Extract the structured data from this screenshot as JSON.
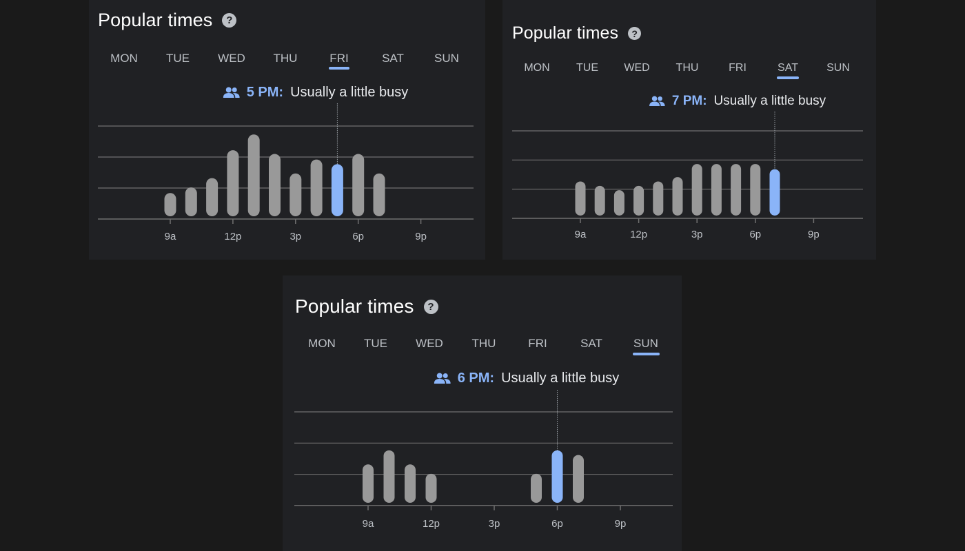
{
  "colors": {
    "background": "#1a1a1a",
    "panel": "#202124",
    "bar": "#999999",
    "bar_selected": "#8ab4f8",
    "gridline": "#707070",
    "text_muted": "#bdc1c6"
  },
  "panels": [
    {
      "title": "Popular times",
      "help_icon": "help-circle-icon",
      "days": [
        "MON",
        "TUE",
        "WED",
        "THU",
        "FRI",
        "SAT",
        "SUN"
      ],
      "selected_day": "FRI",
      "status": {
        "icon": "people-icon",
        "time": "5 PM:",
        "text": "Usually a little busy"
      }
    },
    {
      "title": "Popular times",
      "help_icon": "help-circle-icon",
      "days": [
        "MON",
        "TUE",
        "WED",
        "THU",
        "FRI",
        "SAT",
        "SUN"
      ],
      "selected_day": "SAT",
      "status": {
        "icon": "people-icon",
        "time": "7 PM:",
        "text": "Usually a little busy"
      }
    },
    {
      "title": "Popular times",
      "help_icon": "help-circle-icon",
      "days": [
        "MON",
        "TUE",
        "WED",
        "THU",
        "FRI",
        "SAT",
        "SUN"
      ],
      "selected_day": "SUN",
      "status": {
        "icon": "people-icon",
        "time": "6 PM:",
        "text": "Usually a little busy"
      }
    }
  ],
  "chart_data": [
    {
      "type": "bar",
      "title": "Popular times (FRI)",
      "x_ticks": [
        "9a",
        "12p",
        "3p",
        "6p",
        "9p"
      ],
      "x_tick_hours": [
        9,
        12,
        15,
        18,
        21
      ],
      "hours": [
        9,
        10,
        11,
        12,
        13,
        14,
        15,
        16,
        17,
        18,
        19
      ],
      "values": [
        25,
        31,
        41,
        71,
        88,
        67,
        46,
        61,
        56,
        67,
        46
      ],
      "selected_hour": 17,
      "ylim": [
        0,
        100
      ]
    },
    {
      "type": "bar",
      "title": "Popular times (SAT)",
      "x_ticks": [
        "9a",
        "12p",
        "3p",
        "6p",
        "9p"
      ],
      "x_tick_hours": [
        9,
        12,
        15,
        18,
        21
      ],
      "hours": [
        9,
        10,
        11,
        12,
        13,
        14,
        15,
        16,
        17,
        18,
        19
      ],
      "values": [
        39,
        34,
        29,
        34,
        39,
        44,
        59,
        59,
        59,
        59,
        53
      ],
      "selected_hour": 19,
      "ylim": [
        0,
        100
      ]
    },
    {
      "type": "bar",
      "title": "Popular times (SUN)",
      "x_ticks": [
        "9a",
        "12p",
        "3p",
        "6p",
        "9p"
      ],
      "x_tick_hours": [
        9,
        12,
        15,
        18,
        21
      ],
      "hours": [
        9,
        10,
        11,
        12,
        13,
        14,
        15,
        16,
        17,
        18,
        19
      ],
      "values": [
        41,
        56,
        41,
        31,
        0,
        0,
        0,
        0,
        31,
        56,
        51
      ],
      "selected_hour": 18,
      "ylim": [
        0,
        100
      ]
    }
  ]
}
